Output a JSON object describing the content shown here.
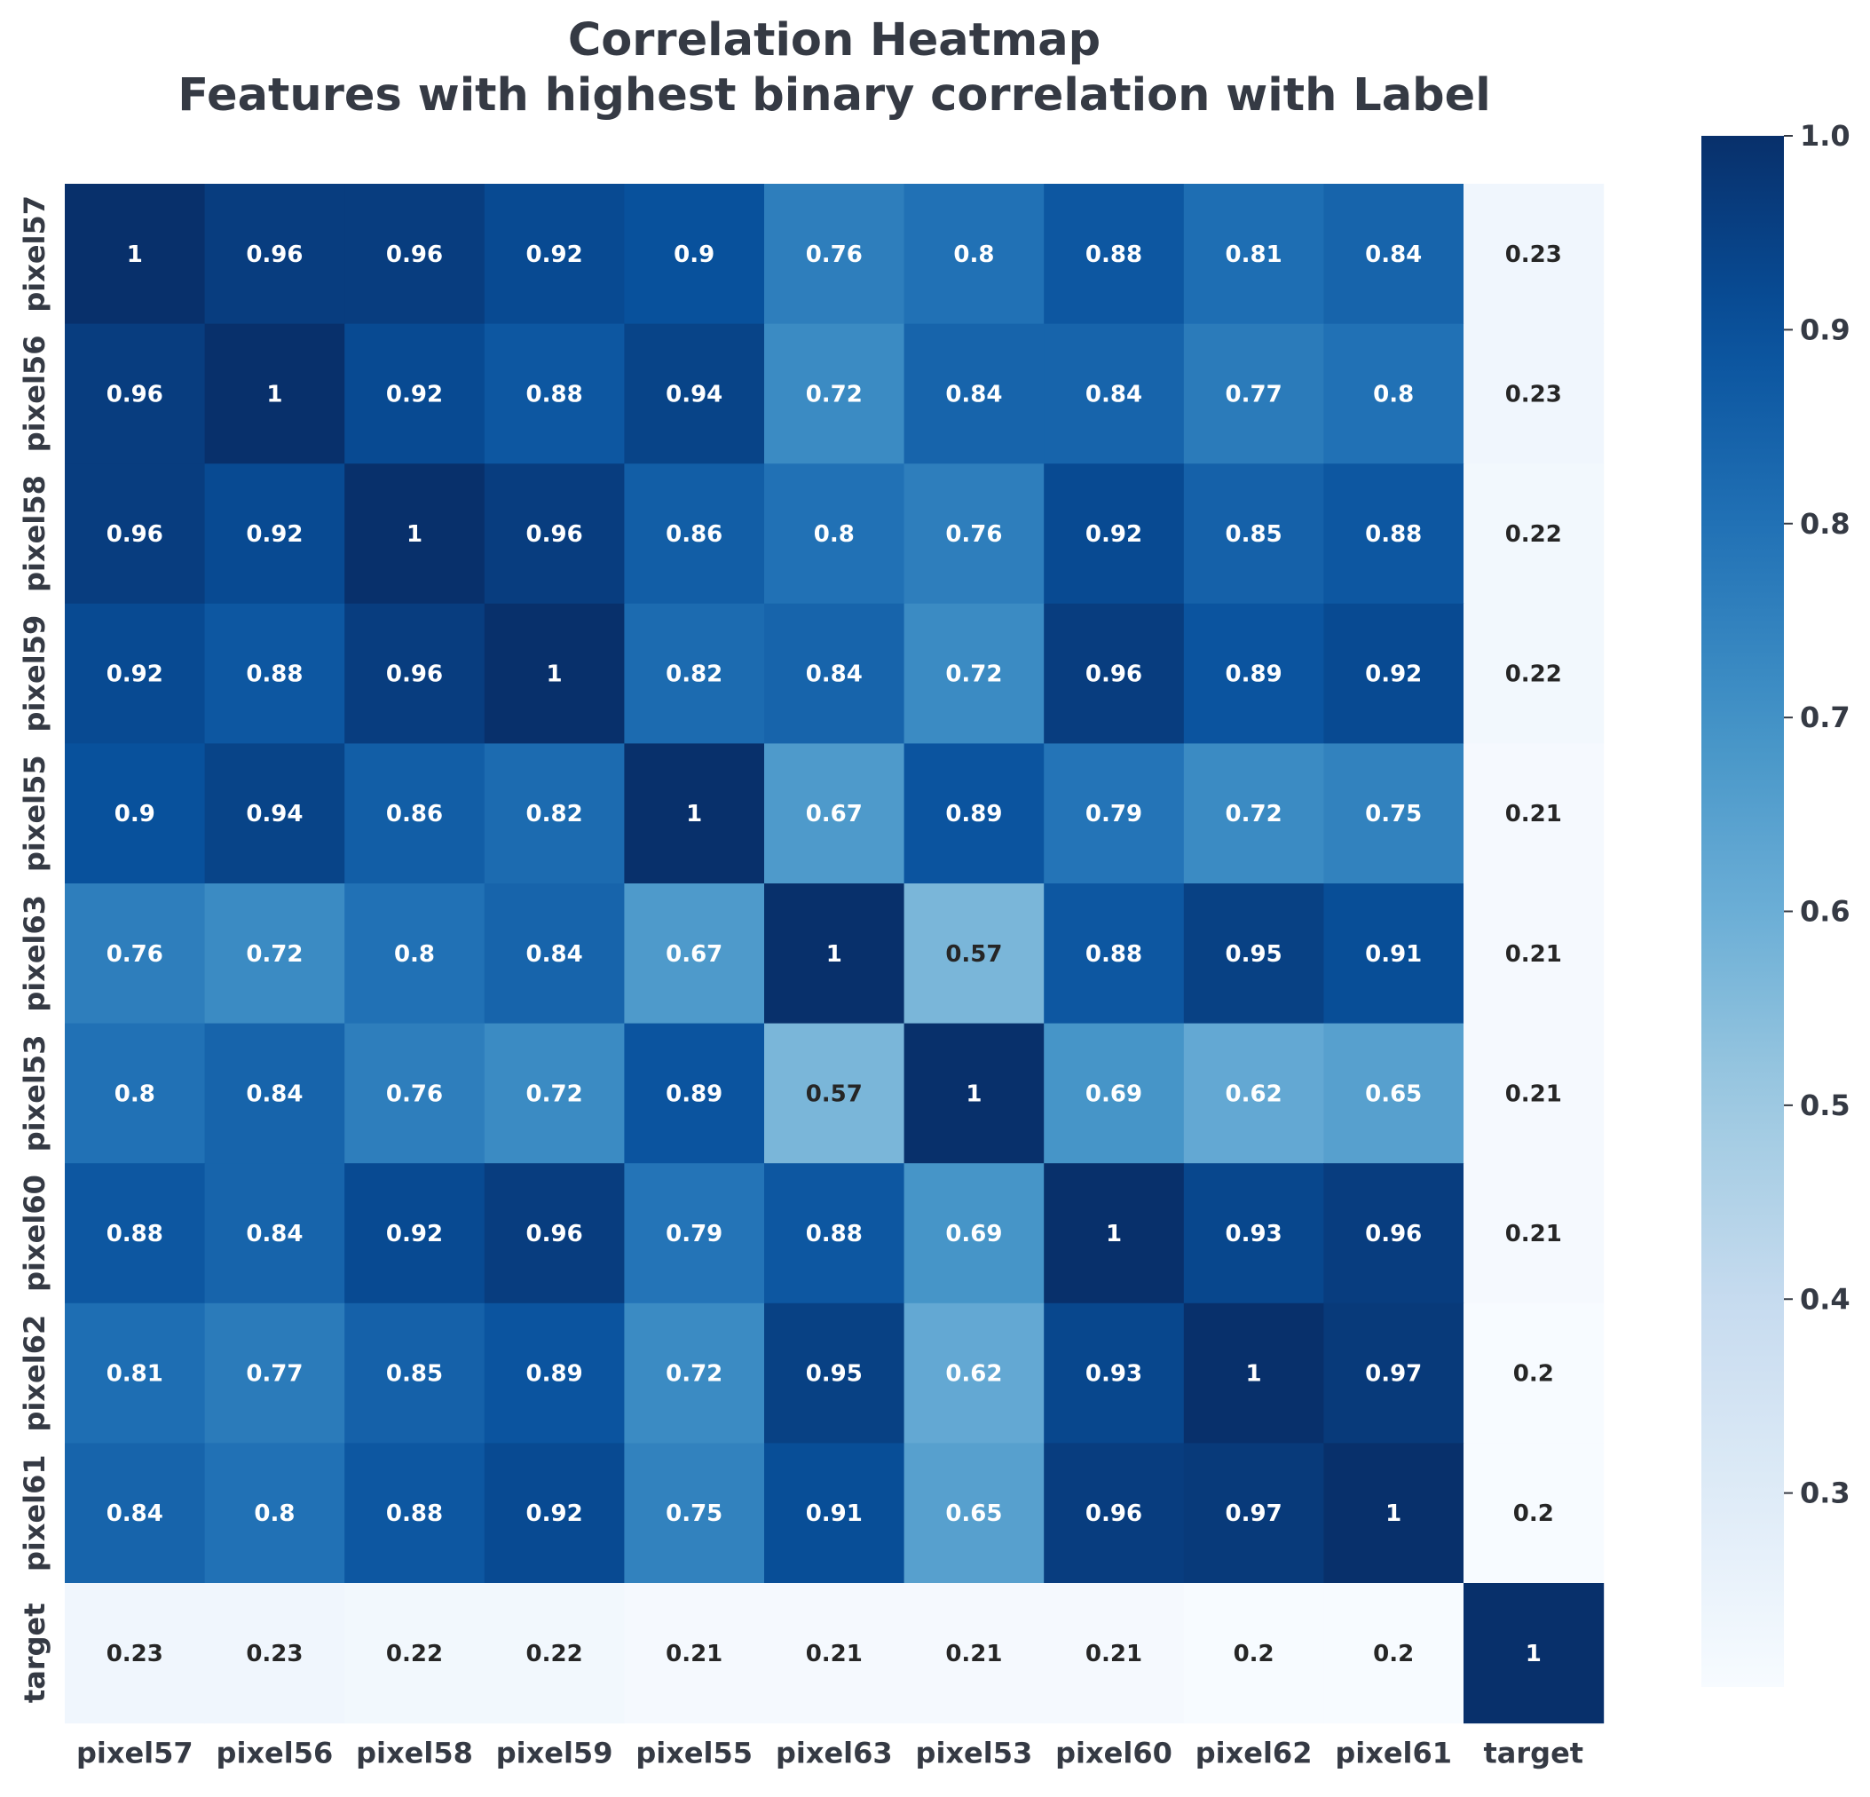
{
  "chart_data": {
    "type": "heatmap",
    "title_lines": [
      "Correlation Heatmap",
      "Features with highest binary correlation with Label"
    ],
    "row_labels": [
      "pixel57",
      "pixel56",
      "pixel58",
      "pixel59",
      "pixel55",
      "pixel63",
      "pixel53",
      "pixel60",
      "pixel62",
      "pixel61",
      "target"
    ],
    "col_labels": [
      "pixel57",
      "pixel56",
      "pixel58",
      "pixel59",
      "pixel55",
      "pixel63",
      "pixel53",
      "pixel60",
      "pixel62",
      "pixel61",
      "target"
    ],
    "values": [
      [
        1,
        0.96,
        0.96,
        0.92,
        0.9,
        0.76,
        0.8,
        0.88,
        0.81,
        0.84,
        0.23
      ],
      [
        0.96,
        1,
        0.92,
        0.88,
        0.94,
        0.72,
        0.84,
        0.84,
        0.77,
        0.8,
        0.23
      ],
      [
        0.96,
        0.92,
        1,
        0.96,
        0.86,
        0.8,
        0.76,
        0.92,
        0.85,
        0.88,
        0.22
      ],
      [
        0.92,
        0.88,
        0.96,
        1,
        0.82,
        0.84,
        0.72,
        0.96,
        0.89,
        0.92,
        0.22
      ],
      [
        0.9,
        0.94,
        0.86,
        0.82,
        1,
        0.67,
        0.89,
        0.79,
        0.72,
        0.75,
        0.21
      ],
      [
        0.76,
        0.72,
        0.8,
        0.84,
        0.67,
        1,
        0.57,
        0.88,
        0.95,
        0.91,
        0.21
      ],
      [
        0.8,
        0.84,
        0.76,
        0.72,
        0.89,
        0.57,
        1,
        0.69,
        0.62,
        0.65,
        0.21
      ],
      [
        0.88,
        0.84,
        0.92,
        0.96,
        0.79,
        0.88,
        0.69,
        1,
        0.93,
        0.96,
        0.21
      ],
      [
        0.81,
        0.77,
        0.85,
        0.89,
        0.72,
        0.95,
        0.62,
        0.93,
        1,
        0.97,
        0.2
      ],
      [
        0.84,
        0.8,
        0.88,
        0.92,
        0.75,
        0.91,
        0.65,
        0.96,
        0.97,
        1,
        0.2
      ],
      [
        0.23,
        0.23,
        0.22,
        0.22,
        0.21,
        0.21,
        0.21,
        0.21,
        0.2,
        0.2,
        1
      ]
    ],
    "annotate": true,
    "colormap": "Blues",
    "vmin": 0.2,
    "vmax": 1.0,
    "colorbar_ticks": [
      "0.3",
      "0.4",
      "0.5",
      "0.6",
      "0.7",
      "0.8",
      "0.9",
      "1.0"
    ],
    "colorbar_position": "right"
  },
  "colors": {
    "text": "#353a44",
    "light_annotation": "#ffffff",
    "dark_annotation": "#262626"
  }
}
